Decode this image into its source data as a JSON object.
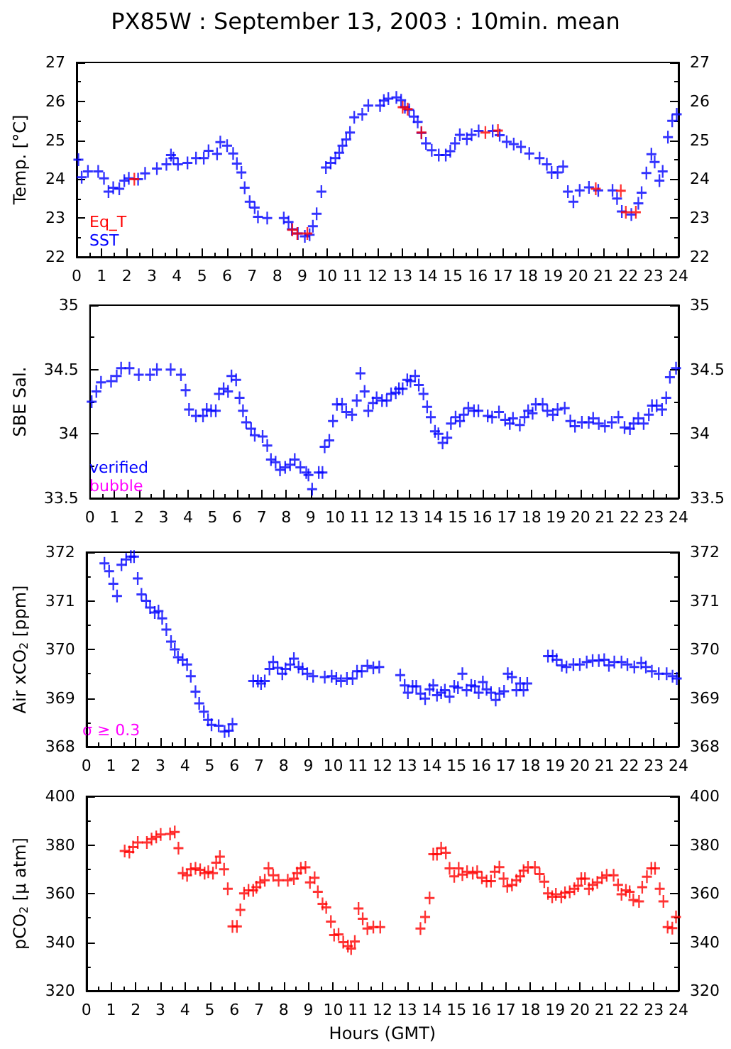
{
  "chart_data": [
    {
      "type": "scatter",
      "title": "PX85W : September 13, 2003 : 10min. mean",
      "ylabel": "Temp. [°C]",
      "xlim": [
        0,
        24
      ],
      "xticks": [
        0,
        1,
        2,
        3,
        4,
        5,
        6,
        7,
        8,
        9,
        10,
        11,
        12,
        13,
        14,
        15,
        16,
        17,
        18,
        19,
        20,
        21,
        22,
        23,
        24
      ],
      "ylim": [
        22,
        27
      ],
      "yticks": [
        22,
        23,
        24,
        25,
        26,
        27
      ],
      "y2lim": [
        22,
        27
      ],
      "y2ticks": [
        22,
        23,
        24,
        25,
        26,
        27
      ],
      "marker": "cross",
      "legend": "bottom left",
      "grid": false,
      "series": [
        {
          "name": "Eq_T",
          "color": "#ff0000",
          "x": [
            2.3,
            8.6,
            8.8,
            9.2,
            13.0,
            13.2,
            13.75,
            16.3,
            16.8,
            20.7,
            21.7,
            21.9,
            22.3
          ],
          "values": [
            24.0,
            22.7,
            22.6,
            22.6,
            25.85,
            25.8,
            25.2,
            25.2,
            25.25,
            23.75,
            23.7,
            23.15,
            23.15
          ]
        },
        {
          "name": "SST",
          "color": "#0000ff",
          "x": [
            0.07,
            0.2,
            0.45,
            0.86,
            1.09,
            1.27,
            1.46,
            1.7,
            1.9,
            2.08,
            2.45,
            2.73,
            3.2,
            3.58,
            3.76,
            3.86,
            4.04,
            4.42,
            4.76,
            5.07,
            5.26,
            5.6,
            5.73,
            6.0,
            6.24,
            6.39,
            6.57,
            6.7,
            6.9,
            7.1,
            7.23,
            7.6,
            8.26,
            8.45,
            8.58,
            8.82,
            9.1,
            9.29,
            9.42,
            9.57,
            9.76,
            9.94,
            10.13,
            10.32,
            10.47,
            10.6,
            10.75,
            10.9,
            11.07,
            11.39,
            11.63,
            12.1,
            12.25,
            12.43,
            12.75,
            12.94,
            13.09,
            13.26,
            13.45,
            13.6,
            13.75,
            13.93,
            14.16,
            14.44,
            14.72,
            14.9,
            15.09,
            15.28,
            15.56,
            15.75,
            16.03,
            16.59,
            16.87,
            17.15,
            17.43,
            17.72,
            18.05,
            18.46,
            18.75,
            18.94,
            19.18,
            19.4,
            19.59,
            19.81,
            20.06,
            20.43,
            20.8,
            21.37,
            21.55,
            21.74,
            22.12,
            22.4,
            22.53,
            22.72,
            22.92,
            23.05,
            23.24,
            23.37,
            23.58,
            23.75,
            23.93
          ],
          "values": [
            24.5,
            24.05,
            24.2,
            24.2,
            24.02,
            23.68,
            23.78,
            23.75,
            23.96,
            24.02,
            24.0,
            24.15,
            24.27,
            24.38,
            24.62,
            24.54,
            24.38,
            24.42,
            24.54,
            24.54,
            24.73,
            24.65,
            24.95,
            24.86,
            24.66,
            24.4,
            24.17,
            23.78,
            23.42,
            23.27,
            23.03,
            23.0,
            23.0,
            22.9,
            22.71,
            22.6,
            22.53,
            22.57,
            22.79,
            23.11,
            23.68,
            24.3,
            24.42,
            24.54,
            24.68,
            24.86,
            25.02,
            25.2,
            25.59,
            25.67,
            25.89,
            25.89,
            26.02,
            26.07,
            26.1,
            26.03,
            25.85,
            25.78,
            25.61,
            25.47,
            25.19,
            24.92,
            24.74,
            24.62,
            24.62,
            24.72,
            24.92,
            25.14,
            25.04,
            25.14,
            25.24,
            25.24,
            25.13,
            24.96,
            24.9,
            24.83,
            24.66,
            24.54,
            24.38,
            24.17,
            24.17,
            24.32,
            23.68,
            23.42,
            23.71,
            23.79,
            23.71,
            23.71,
            23.5,
            23.17,
            23.09,
            23.38,
            23.65,
            24.16,
            24.64,
            24.44,
            23.96,
            24.2,
            25.08,
            25.5,
            25.67
          ]
        }
      ]
    },
    {
      "type": "scatter",
      "ylabel": "SBE Sal.",
      "xlim": [
        0,
        24
      ],
      "xticks": [
        0,
        1,
        2,
        3,
        4,
        5,
        6,
        7,
        8,
        9,
        10,
        11,
        12,
        13,
        14,
        15,
        16,
        17,
        18,
        19,
        20,
        21,
        22,
        23,
        24
      ],
      "ylim": [
        33.5,
        35
      ],
      "yticks": [
        33.5,
        34,
        34.5,
        35
      ],
      "y2lim": [
        33.5,
        35
      ],
      "y2ticks": [
        33.5,
        34,
        34.5,
        35
      ],
      "marker": "cross",
      "legend": "bottom left",
      "grid": false,
      "series": [
        {
          "name": "verified",
          "color": "#0000ff",
          "x": [
            0.07,
            0.26,
            0.45,
            0.86,
            1.09,
            1.27,
            1.61,
            1.99,
            2.45,
            2.73,
            3.29,
            3.71,
            3.9,
            4.04,
            4.32,
            4.61,
            4.76,
            4.94,
            5.13,
            5.26,
            5.45,
            5.63,
            5.77,
            5.96,
            6.1,
            6.24,
            6.37,
            6.57,
            6.72,
            7.04,
            7.23,
            7.38,
            7.57,
            7.75,
            7.96,
            8.16,
            8.35,
            8.58,
            8.82,
            8.91,
            9.06,
            9.33,
            9.48,
            9.57,
            9.76,
            9.91,
            10.07,
            10.28,
            10.45,
            10.69,
            10.88,
            11.03,
            11.2,
            11.35,
            11.54,
            11.69,
            11.91,
            12.1,
            12.28,
            12.47,
            12.6,
            12.75,
            12.94,
            13.07,
            13.26,
            13.41,
            13.6,
            13.75,
            13.9,
            14.07,
            14.21,
            14.38,
            14.57,
            14.72,
            14.91,
            15.09,
            15.24,
            15.43,
            15.66,
            15.84,
            16.22,
            16.4,
            16.68,
            16.93,
            17.12,
            17.25,
            17.53,
            17.72,
            17.87,
            18.05,
            18.18,
            18.46,
            18.65,
            18.88,
            19.07,
            19.36,
            19.59,
            19.78,
            20.06,
            20.34,
            20.52,
            20.75,
            21.0,
            21.28,
            21.55,
            21.8,
            22.02,
            22.17,
            22.36,
            22.58,
            22.79,
            22.92,
            23.11,
            23.33,
            23.5,
            23.65,
            23.9
          ],
          "values": [
            34.25,
            34.33,
            34.4,
            34.41,
            34.45,
            34.51,
            34.51,
            34.46,
            34.46,
            34.5,
            34.5,
            34.46,
            34.34,
            34.19,
            34.14,
            34.14,
            34.19,
            34.18,
            34.18,
            34.31,
            34.35,
            34.33,
            34.45,
            34.42,
            34.28,
            34.18,
            34.09,
            34.04,
            33.99,
            33.98,
            33.91,
            33.8,
            33.78,
            33.72,
            33.74,
            33.76,
            33.8,
            33.74,
            33.7,
            33.68,
            33.57,
            33.7,
            33.7,
            33.9,
            33.95,
            34.1,
            34.23,
            34.23,
            34.17,
            34.15,
            34.26,
            34.47,
            34.33,
            34.18,
            34.24,
            34.28,
            34.26,
            34.26,
            34.31,
            34.32,
            34.35,
            34.35,
            34.42,
            34.41,
            34.45,
            34.38,
            34.31,
            34.21,
            34.13,
            34.02,
            34.0,
            33.93,
            33.97,
            34.08,
            34.13,
            34.1,
            34.15,
            34.2,
            34.18,
            34.18,
            34.14,
            34.13,
            34.17,
            34.11,
            34.08,
            34.12,
            34.07,
            34.13,
            34.18,
            34.16,
            34.23,
            34.23,
            34.18,
            34.15,
            34.19,
            34.2,
            34.1,
            34.06,
            34.09,
            34.09,
            34.12,
            34.08,
            34.06,
            34.09,
            34.13,
            34.05,
            34.04,
            34.08,
            34.12,
            34.08,
            34.15,
            34.22,
            34.22,
            34.19,
            34.28,
            34.44,
            34.51
          ]
        },
        {
          "name": "bubble",
          "color": "#ff00ff"
        }
      ]
    },
    {
      "type": "scatter",
      "ylabel": "Air xCO$_{2}$ [ppm]",
      "xlim": [
        0,
        24
      ],
      "xticks": [
        0,
        1,
        2,
        3,
        4,
        5,
        6,
        7,
        8,
        9,
        10,
        11,
        12,
        13,
        14,
        15,
        16,
        17,
        18,
        19,
        20,
        21,
        22,
        23,
        24
      ],
      "ylim": [
        368,
        372
      ],
      "yticks": [
        368,
        369,
        370,
        371,
        372
      ],
      "y2lim": [
        368,
        372
      ],
      "y2ticks": [
        368,
        369,
        370,
        371,
        372
      ],
      "marker": "cross",
      "grid": false,
      "annotations": [
        "σ ≥ 0.3"
      ],
      "series": [
        {
          "color": "#0000ff",
          "x": [
            0.73,
            0.92,
            1.09,
            1.24,
            1.42,
            1.61,
            1.8,
            1.93,
            2.08,
            2.23,
            2.42,
            2.58,
            2.77,
            2.92,
            3.07,
            3.24,
            3.43,
            3.58,
            3.71,
            3.9,
            4.08,
            4.23,
            4.42,
            4.57,
            4.76,
            4.93,
            5.07,
            5.36,
            5.6,
            5.77,
            5.92,
            6.76,
            6.95,
            7.08,
            7.23,
            7.42,
            7.57,
            7.75,
            7.94,
            8.07,
            8.26,
            8.41,
            8.6,
            8.76,
            8.95,
            9.19,
            9.66,
            9.94,
            10.13,
            10.32,
            10.56,
            10.79,
            10.97,
            11.16,
            11.39,
            11.63,
            11.87,
            12.72,
            12.9,
            13.03,
            13.22,
            13.37,
            13.54,
            13.73,
            13.91,
            14.06,
            14.21,
            14.38,
            14.53,
            14.72,
            14.91,
            15.06,
            15.24,
            15.41,
            15.6,
            15.75,
            15.9,
            16.07,
            16.22,
            16.4,
            16.59,
            16.74,
            16.93,
            17.08,
            17.25,
            17.43,
            17.58,
            17.72,
            17.87,
            18.71,
            18.9,
            19.06,
            19.27,
            19.46,
            19.74,
            20.0,
            20.28,
            20.52,
            20.77,
            20.99,
            21.18,
            21.4,
            21.69,
            21.93,
            22.21,
            22.49,
            22.68,
            22.92,
            23.2,
            23.52,
            23.76,
            23.93
          ],
          "values": [
            371.77,
            371.61,
            371.35,
            371.1,
            371.74,
            371.85,
            371.91,
            371.91,
            371.46,
            371.13,
            371.0,
            370.86,
            370.76,
            370.79,
            370.64,
            370.41,
            370.16,
            370.0,
            369.84,
            369.79,
            369.69,
            369.45,
            369.13,
            368.89,
            368.72,
            368.55,
            368.45,
            368.43,
            368.31,
            368.33,
            368.46,
            369.35,
            369.35,
            369.3,
            369.35,
            369.6,
            369.74,
            369.62,
            369.5,
            369.6,
            369.69,
            369.81,
            369.64,
            369.6,
            369.5,
            369.45,
            369.43,
            369.45,
            369.4,
            369.35,
            369.4,
            369.4,
            369.55,
            369.55,
            369.66,
            369.62,
            369.64,
            369.47,
            369.26,
            369.11,
            369.24,
            369.24,
            369.09,
            368.99,
            369.18,
            369.26,
            369.06,
            369.11,
            369.16,
            369.03,
            369.24,
            369.21,
            369.5,
            369.16,
            369.26,
            369.24,
            369.11,
            369.33,
            369.18,
            369.11,
            368.96,
            369.09,
            369.14,
            369.5,
            369.43,
            369.16,
            369.3,
            369.16,
            369.3,
            369.86,
            369.86,
            369.79,
            369.67,
            369.64,
            369.69,
            369.69,
            369.74,
            369.77,
            369.77,
            369.79,
            369.67,
            369.74,
            369.74,
            369.69,
            369.64,
            369.72,
            369.64,
            369.55,
            369.5,
            369.5,
            369.45,
            369.4
          ]
        }
      ]
    },
    {
      "type": "scatter",
      "ylabel": "pCO$_{2}$ [µ atm]",
      "xlabel": "Hours (GMT)",
      "xlim": [
        0,
        24
      ],
      "xticks": [
        0,
        1,
        2,
        3,
        4,
        5,
        6,
        7,
        8,
        9,
        10,
        11,
        12,
        13,
        14,
        15,
        16,
        17,
        18,
        19,
        20,
        21,
        22,
        23,
        24
      ],
      "ylim": [
        320,
        400
      ],
      "yticks": [
        320,
        340,
        360,
        380,
        400
      ],
      "y2lim": [
        320,
        400
      ],
      "y2ticks": [
        320,
        340,
        360,
        380,
        400
      ],
      "marker": "cross",
      "grid": false,
      "series": [
        {
          "color": "#ff0000",
          "x": [
            1.55,
            1.74,
            1.89,
            2.08,
            2.45,
            2.64,
            2.83,
            3.01,
            3.39,
            3.58,
            3.73,
            3.9,
            4.08,
            4.23,
            4.42,
            4.61,
            4.79,
            4.94,
            5.13,
            5.26,
            5.41,
            5.58,
            5.73,
            5.92,
            6.1,
            6.24,
            6.39,
            6.57,
            6.76,
            6.89,
            7.04,
            7.23,
            7.38,
            7.57,
            7.79,
            8.16,
            8.41,
            8.54,
            8.69,
            8.88,
            9.06,
            9.25,
            9.38,
            9.57,
            9.72,
            9.91,
            10.04,
            10.22,
            10.41,
            10.6,
            10.73,
            10.88,
            11.03,
            11.2,
            11.39,
            11.63,
            11.91,
            13.54,
            13.73,
            13.91,
            14.06,
            14.21,
            14.38,
            14.57,
            14.72,
            14.91,
            15.09,
            15.24,
            15.43,
            15.66,
            15.84,
            16.03,
            16.22,
            16.4,
            16.55,
            16.74,
            16.91,
            17.06,
            17.25,
            17.43,
            17.58,
            17.72,
            17.9,
            18.18,
            18.37,
            18.56,
            18.71,
            18.88,
            19.03,
            19.25,
            19.4,
            19.59,
            19.78,
            19.93,
            20.06,
            20.21,
            20.37,
            20.52,
            20.71,
            20.9,
            21.09,
            21.37,
            21.55,
            21.69,
            21.87,
            22.02,
            22.17,
            22.4,
            22.53,
            22.72,
            22.9,
            23.05,
            23.24,
            23.39,
            23.56,
            23.75,
            23.9
          ],
          "values": [
            377.5,
            377.1,
            379.1,
            381.0,
            381.0,
            382.4,
            383.3,
            384.3,
            384.5,
            385.3,
            378.7,
            368.4,
            367.5,
            370.0,
            370.4,
            369.8,
            368.4,
            369.0,
            368.4,
            372.7,
            375.2,
            370.0,
            362.0,
            346.5,
            346.5,
            353.3,
            360.1,
            361.3,
            361.3,
            362.6,
            364.6,
            365.5,
            370.4,
            367.5,
            365.5,
            365.5,
            366.1,
            368.4,
            370.4,
            370.8,
            364.6,
            366.5,
            360.7,
            355.8,
            354.3,
            348.5,
            342.9,
            343.2,
            340.0,
            338.4,
            337.4,
            340.3,
            353.9,
            349.6,
            345.6,
            346.2,
            346.2,
            345.6,
            350.4,
            358.2,
            376.2,
            376.2,
            378.7,
            376.8,
            370.4,
            367.1,
            370.4,
            367.8,
            369.0,
            368.4,
            369.0,
            366.5,
            365.1,
            365.1,
            369.0,
            370.9,
            366.1,
            363.0,
            363.6,
            365.5,
            367.1,
            369.4,
            370.8,
            370.8,
            368.0,
            364.9,
            360.1,
            358.7,
            359.7,
            358.7,
            360.3,
            360.7,
            362.0,
            363.2,
            366.1,
            366.1,
            362.0,
            363.6,
            364.6,
            366.5,
            367.5,
            367.5,
            363.6,
            359.7,
            361.3,
            360.7,
            357.4,
            356.8,
            362.6,
            366.9,
            370.4,
            370.4,
            362.0,
            356.8,
            346.2,
            345.8,
            350.4
          ]
        }
      ]
    }
  ]
}
